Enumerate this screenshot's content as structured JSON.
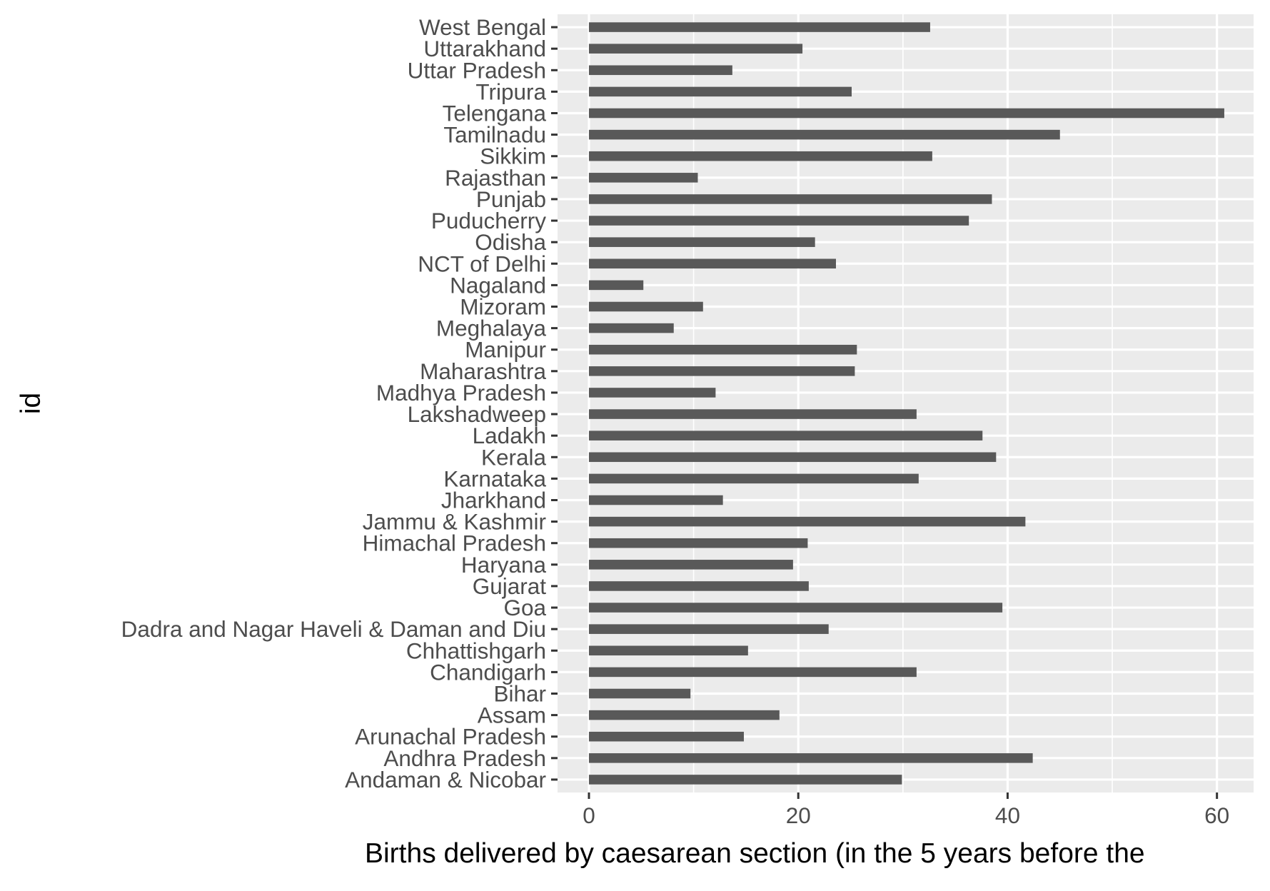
{
  "chart_data": {
    "type": "bar",
    "orientation": "horizontal",
    "title": "",
    "xlabel": "Births delivered by caesarean section (in the 5 years before the",
    "ylabel": "id",
    "xlim": [
      -3,
      63.5
    ],
    "xticks": [
      0,
      20,
      40,
      60
    ],
    "grid": true,
    "categories": [
      "Andaman & Nicobar",
      "Andhra Pradesh",
      "Arunachal Pradesh",
      "Assam",
      "Bihar",
      "Chandigarh",
      "Chhattishgarh",
      "Dadra and Nagar Haveli & Daman and Diu",
      "Goa",
      "Gujarat",
      "Haryana",
      "Himachal Pradesh",
      "Jammu & Kashmir",
      "Jharkhand",
      "Karnataka",
      "Kerala",
      "Ladakh",
      "Lakshadweep",
      "Madhya Pradesh",
      "Maharashtra",
      "Manipur",
      "Meghalaya",
      "Mizoram",
      "Nagaland",
      "NCT of Delhi",
      "Odisha",
      "Puducherry",
      "Punjab",
      "Rajasthan",
      "Sikkim",
      "Tamilnadu",
      "Telengana",
      "Tripura",
      "Uttar Pradesh",
      "Uttarakhand",
      "West Bengal"
    ],
    "values": [
      29.9,
      42.4,
      14.8,
      18.2,
      9.7,
      31.3,
      15.2,
      22.9,
      39.5,
      21.0,
      19.5,
      20.9,
      41.7,
      12.8,
      31.5,
      38.9,
      37.6,
      31.3,
      12.1,
      25.4,
      25.6,
      8.1,
      10.9,
      5.2,
      23.6,
      21.6,
      36.3,
      38.5,
      10.4,
      32.8,
      45.0,
      60.7,
      25.1,
      13.7,
      20.4,
      32.6
    ],
    "colors": {
      "panel": "#EBEBEB",
      "grid": "#FFFFFF",
      "bar": "#595959",
      "tick_text": "#4D4D4D",
      "axis_title": "#000000",
      "tick_mark": "#333333"
    }
  }
}
